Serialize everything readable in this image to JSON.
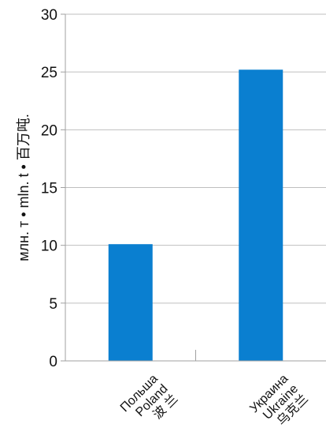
{
  "chart_data": {
    "type": "bar",
    "categories": [
      {
        "lines": [
          "Польша",
          "Poland",
          "波 兰"
        ]
      },
      {
        "lines": [
          "Украина",
          "Ukraine",
          "乌克兰"
        ]
      }
    ],
    "values": [
      10.1,
      25.2
    ],
    "ylabel": "млн. т • mln. t • 百万吨.",
    "ylim": [
      0,
      30
    ],
    "yticks": [
      0,
      5,
      10,
      15,
      20,
      25,
      30
    ],
    "grid": true,
    "bar_color": "#0a7fd0",
    "grid_color": "#bfbfbf",
    "axis_color": "#a0a0a0"
  }
}
